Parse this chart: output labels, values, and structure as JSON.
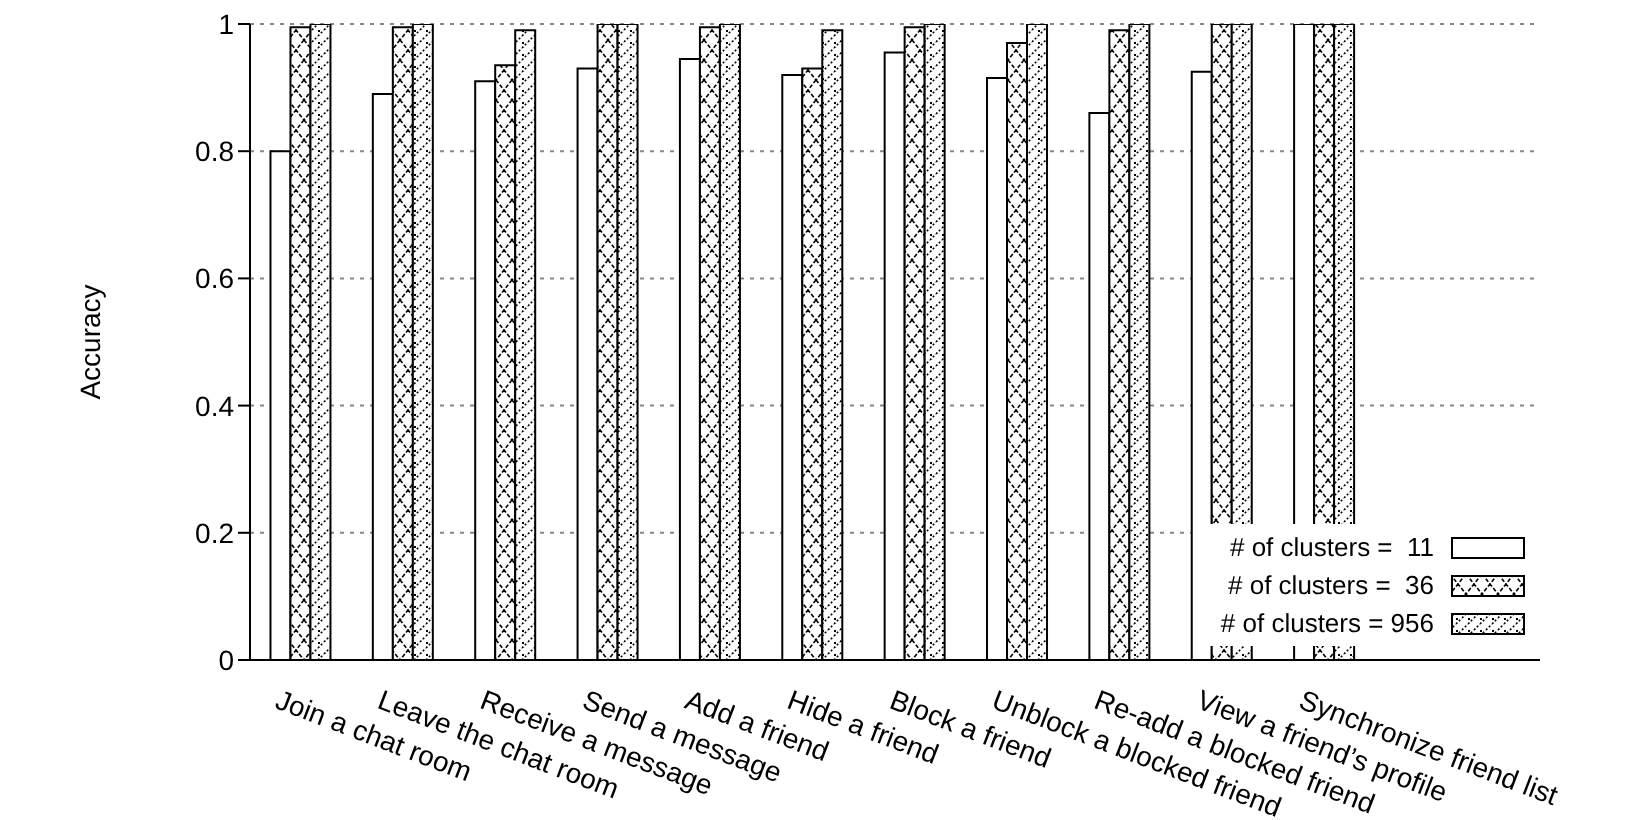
{
  "chart_data": {
    "type": "bar",
    "ylabel": "Accuracy",
    "categories": [
      "Join a chat room",
      "Leave the chat room",
      "Receive a message",
      "Send a message",
      "Add a friend",
      "Hide a friend",
      "Block a friend",
      "Unblock a blocked friend",
      "Re-add a blocked friend",
      "View a friend’s profile",
      "Synchronize friend list"
    ],
    "series": [
      {
        "name": "# of clusters =  11",
        "color": "#000000",
        "values": [
          0.8,
          0.89,
          0.91,
          0.93,
          0.945,
          0.92,
          0.955,
          0.915,
          0.86,
          0.925,
          1.0
        ]
      },
      {
        "name": "# of clusters =  36",
        "color": "#000000",
        "values": [
          0.995,
          0.995,
          0.935,
          1.0,
          0.995,
          0.93,
          0.995,
          0.97,
          0.99,
          1.0,
          1.0
        ]
      },
      {
        "name": "# of clusters = 956",
        "color": "#000000",
        "values": [
          1.0,
          1.0,
          0.99,
          1.0,
          1.0,
          0.99,
          1.0,
          1.0,
          1.0,
          1.0,
          1.0
        ]
      }
    ],
    "ylim": [
      0,
      1
    ],
    "yticks": [
      0,
      0.2,
      0.4,
      0.6,
      0.8,
      1
    ],
    "grid": "y",
    "legend": "bottom right"
  }
}
